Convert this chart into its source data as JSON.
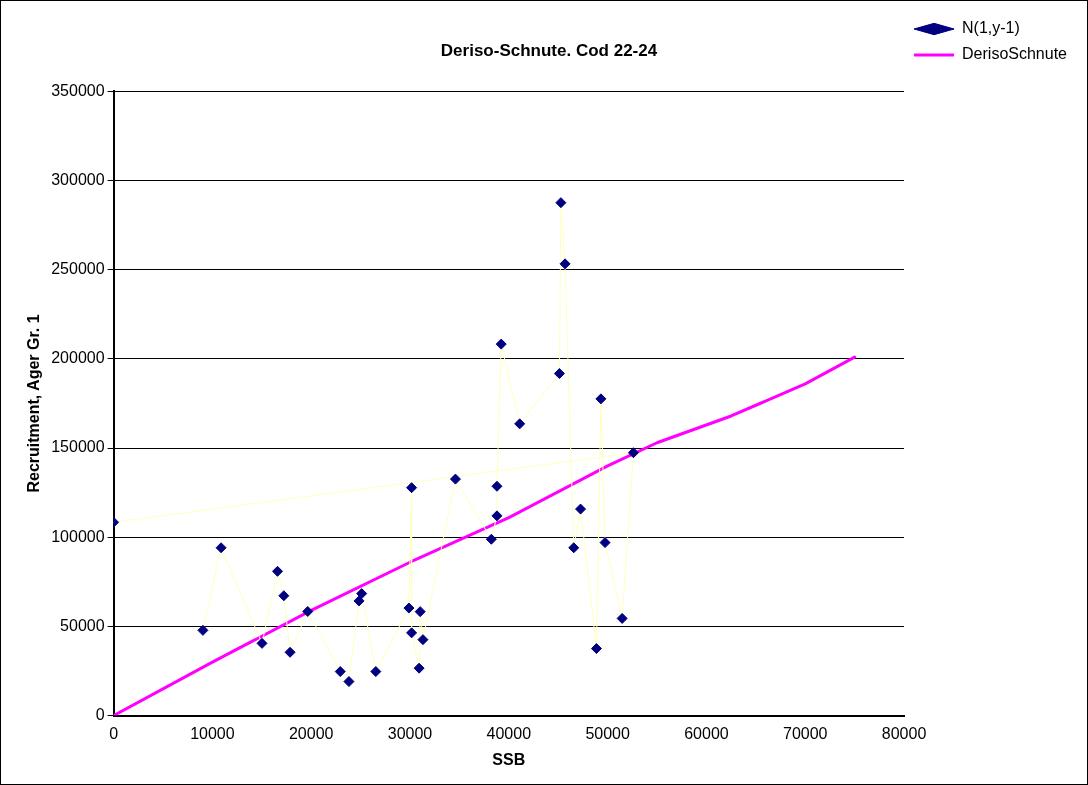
{
  "chart_data": {
    "type": "scatter",
    "title": "Deriso-Schnute. Cod 22-24",
    "xlabel": "SSB",
    "ylabel": "Recruitment, Ager Gr. 1",
    "xlim": [
      0,
      80000
    ],
    "xticks": [
      0,
      10000,
      20000,
      30000,
      40000,
      50000,
      60000,
      70000,
      80000
    ],
    "ylim": [
      0,
      350000
    ],
    "yticks": [
      0,
      50000,
      100000,
      150000,
      200000,
      250000,
      300000,
      350000
    ],
    "grid": "y",
    "legend": "top right",
    "series": [
      {
        "name": "N(1,y-1)",
        "type": "line",
        "color": "#ffffc0",
        "colors": [
          "#000080",
          "#000080",
          "#000080",
          "#000080",
          "#000080",
          "#000080",
          "#000080",
          "#000080",
          "#000080",
          "#000080",
          "#000080",
          "#000080",
          "#000080",
          "#000080",
          "#000080",
          "#000080",
          "#000080",
          "#000080",
          "#000080",
          "#000080",
          "#000080",
          "#000080",
          "#000080",
          "#000080",
          "#000080",
          "#000080",
          "#000080",
          "#000080",
          "#000080",
          "#000080",
          "#000080",
          "#000080",
          "#000080",
          "#000080",
          "#000080"
        ],
        "marker": "diamond",
        "line_style": "solid",
        "x": [
          9040,
          10880,
          15020,
          16590,
          17230,
          17860,
          19650,
          22940,
          23820,
          24840,
          25110,
          26540,
          29890,
          30160,
          30160,
          30920,
          31030,
          31310,
          34600,
          38230,
          38800,
          38800,
          39230,
          41100,
          45120,
          45270,
          45690,
          46570,
          47260,
          48870,
          49320,
          49740,
          51470,
          52610,
          0
        ],
        "values": [
          47800,
          94100,
          40500,
          80900,
          67200,
          35500,
          58400,
          24700,
          19100,
          64300,
          68400,
          24700,
          60300,
          127800,
          46400,
          26600,
          58300,
          42600,
          132600,
          98900,
          112000,
          128600,
          208300,
          163600,
          191800,
          287600,
          253300,
          94100,
          115800,
          37600,
          177600,
          97000,
          54500,
          147400,
          108400
        ]
      },
      {
        "name": "DerisoSchnute",
        "type": "line",
        "color": "#ff00ff",
        "marker": "none",
        "line_style": "solid",
        "x": [
          0,
          10000,
          20000,
          30000,
          40000,
          50000,
          55000,
          62500,
          70000,
          75000
        ],
        "values": [
          0,
          30000,
          59000,
          86000,
          111000,
          140000,
          153000,
          168000,
          186000,
          201000
        ]
      }
    ]
  }
}
